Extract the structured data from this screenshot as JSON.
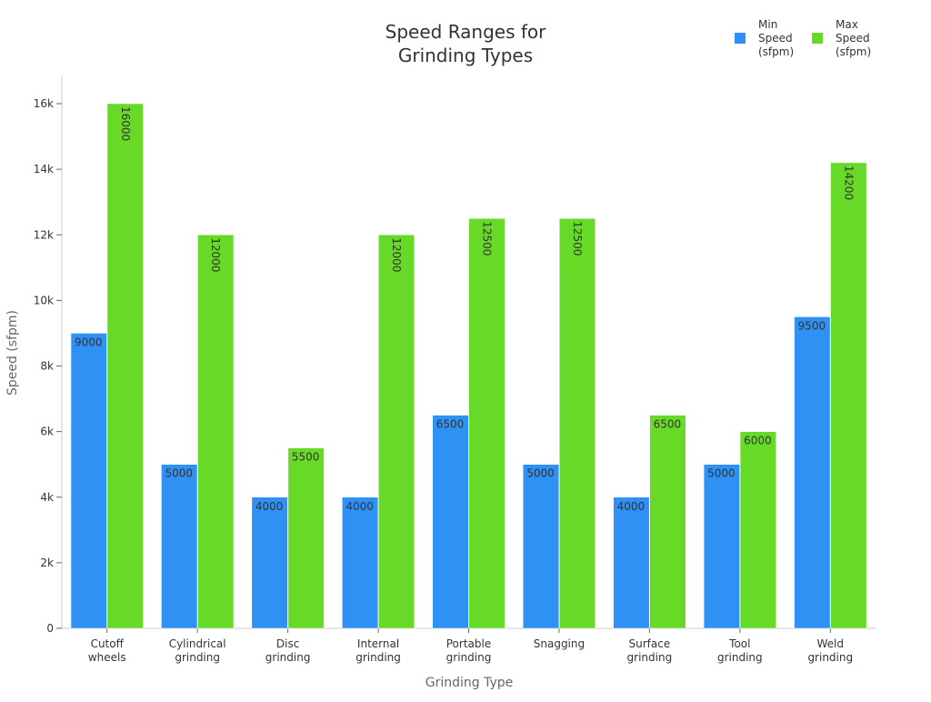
{
  "chart_data": {
    "type": "bar",
    "title": "Speed Ranges for\nGrinding Types",
    "xlabel": "Grinding Type",
    "ylabel": "Speed (sfpm)",
    "ylim": [
      0,
      16800
    ],
    "yticks": [
      0,
      2000,
      4000,
      6000,
      8000,
      10000,
      12000,
      14000,
      16000
    ],
    "ytick_labels": [
      "0",
      "2k",
      "4k",
      "6k",
      "8k",
      "10k",
      "12k",
      "14k",
      "16k"
    ],
    "grid": false,
    "legend_position": "top-right",
    "categories": [
      "Cutoff\nwheels",
      "Cylindrical\ngrinding",
      "Disc\ngrinding",
      "Internal\ngrinding",
      "Portable\ngrinding",
      "Snagging",
      "Surface\ngrinding",
      "Tool\ngrinding",
      "Weld\ngrinding"
    ],
    "series": [
      {
        "name": "Min\nSpeed\n(sfpm)",
        "color": "#3091f5",
        "values": [
          9000,
          5000,
          4000,
          4000,
          6500,
          5000,
          4000,
          5000,
          9500
        ]
      },
      {
        "name": "Max\nSpeed\n(sfpm)",
        "color": "#66da26",
        "values": [
          16000,
          12000,
          5500,
          12000,
          12500,
          12500,
          6500,
          6000,
          14200
        ]
      }
    ]
  }
}
